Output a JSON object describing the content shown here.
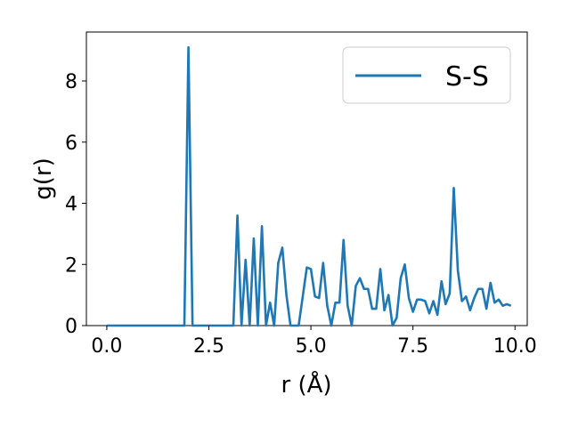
{
  "chart_data": {
    "type": "line",
    "xlabel": "r (Å)",
    "ylabel": "g(r)",
    "xlim": [
      -0.5,
      10.3
    ],
    "ylim": [
      0,
      9.6
    ],
    "x_ticks": [
      0.0,
      2.5,
      5.0,
      7.5,
      10.0
    ],
    "x_tick_labels": [
      "0.0",
      "2.5",
      "5.0",
      "7.5",
      "10.0"
    ],
    "y_ticks": [
      0,
      2,
      4,
      6,
      8
    ],
    "y_tick_labels": [
      "0",
      "2",
      "4",
      "6",
      "8"
    ],
    "grid": false,
    "legend_position": "top-right",
    "series": [
      {
        "name": "S-S",
        "color": "#1f77b4",
        "x": [
          0.0,
          1.9,
          2.0,
          2.1,
          3.1,
          3.2,
          3.3,
          3.4,
          3.5,
          3.6,
          3.7,
          3.8,
          3.9,
          4.0,
          4.1,
          4.2,
          4.3,
          4.4,
          4.5,
          4.6,
          4.7,
          4.8,
          4.9,
          5.0,
          5.1,
          5.2,
          5.3,
          5.4,
          5.5,
          5.6,
          5.7,
          5.8,
          5.9,
          6.0,
          6.1,
          6.2,
          6.3,
          6.4,
          6.5,
          6.6,
          6.7,
          6.8,
          6.9,
          7.0,
          7.1,
          7.2,
          7.3,
          7.4,
          7.5,
          7.6,
          7.7,
          7.8,
          7.9,
          8.0,
          8.1,
          8.2,
          8.3,
          8.4,
          8.5,
          8.6,
          8.7,
          8.8,
          8.9,
          9.0,
          9.1,
          9.2,
          9.3,
          9.4,
          9.5,
          9.6,
          9.7,
          9.8,
          9.9
        ],
        "y": [
          0.0,
          0.0,
          9.1,
          0.0,
          0.0,
          3.6,
          0.0,
          2.15,
          0.0,
          2.85,
          0.0,
          3.25,
          0.0,
          0.75,
          0.0,
          2.05,
          2.55,
          1.0,
          0.0,
          0.0,
          0.0,
          0.95,
          1.9,
          1.85,
          0.95,
          0.9,
          2.05,
          0.65,
          0.0,
          0.75,
          0.75,
          2.8,
          0.65,
          0.0,
          1.3,
          1.55,
          1.2,
          1.2,
          0.55,
          0.55,
          1.85,
          0.5,
          1.0,
          0.0,
          0.25,
          1.55,
          2.0,
          0.9,
          0.45,
          0.85,
          0.85,
          0.8,
          0.4,
          0.8,
          0.35,
          1.45,
          0.7,
          1.05,
          4.5,
          1.8,
          0.8,
          0.95,
          0.5,
          0.9,
          1.2,
          1.2,
          0.55,
          1.4,
          0.75,
          0.85,
          0.65,
          0.7,
          0.65
        ]
      }
    ]
  }
}
